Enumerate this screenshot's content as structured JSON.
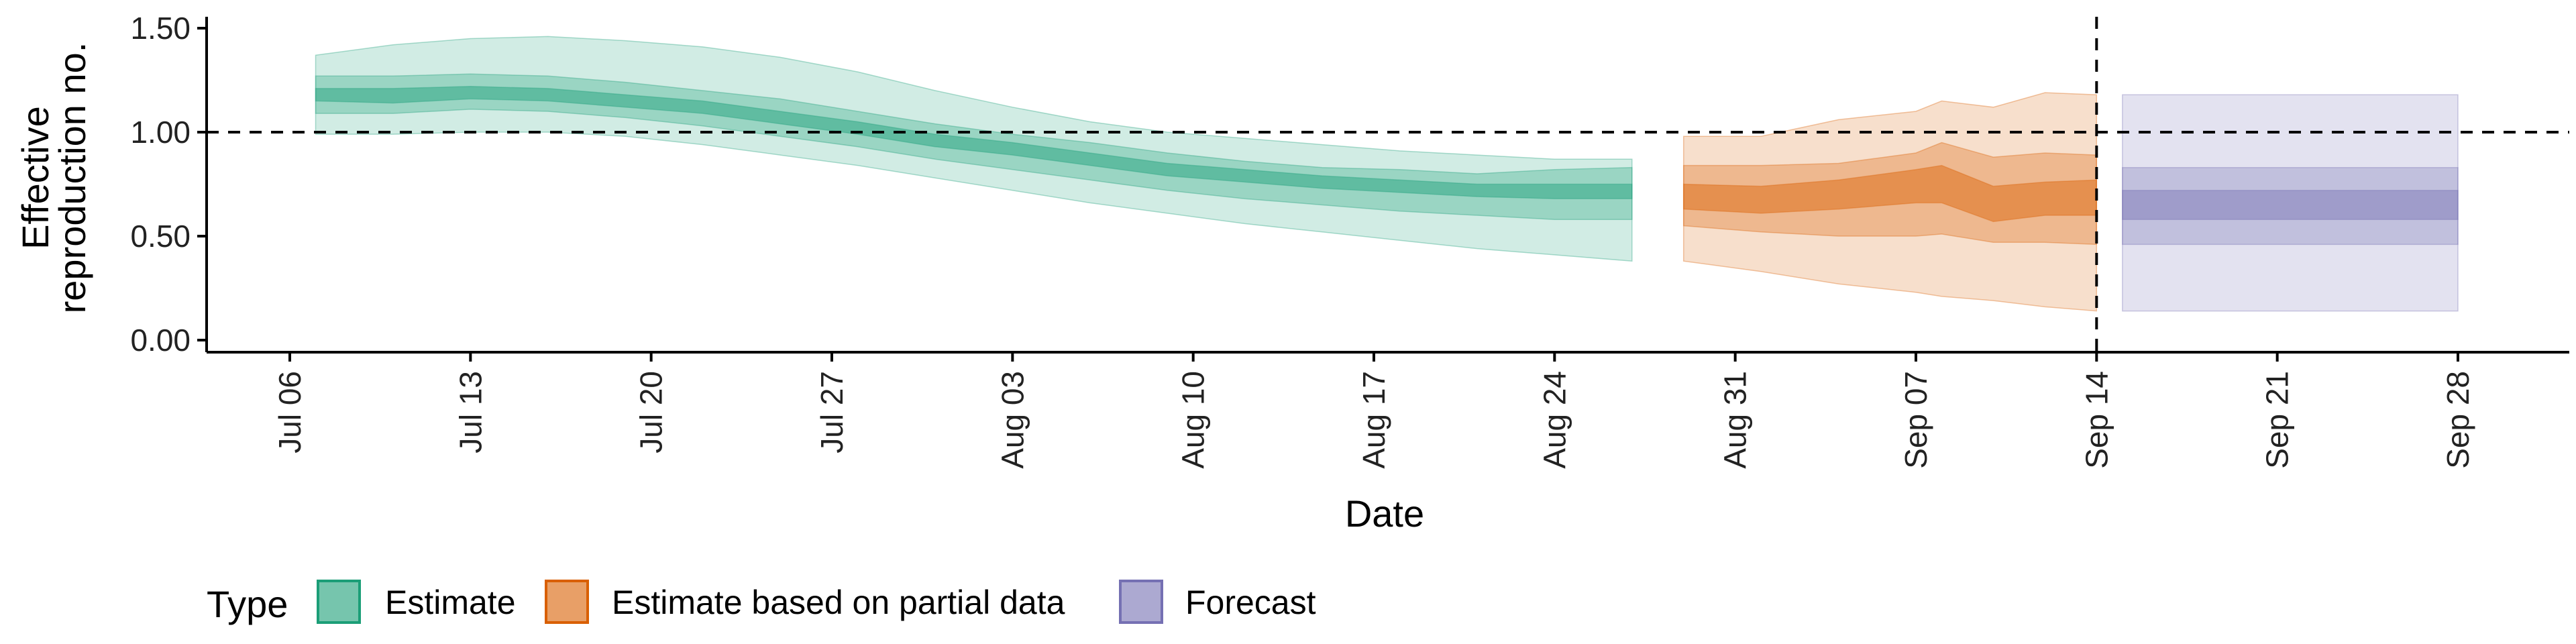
{
  "chart_data": {
    "type": "area",
    "xlabel": "Date",
    "ylabel_lines": [
      "Effective",
      "reproduction no."
    ],
    "ylim": [
      0,
      1.55
    ],
    "xlim": [
      "2020-07-02",
      "2020-10-04"
    ],
    "y_ticks": [
      0,
      0.5,
      1.0,
      1.5
    ],
    "y_tick_labels": [
      "0.00",
      "0.50",
      "1.00",
      "1.50"
    ],
    "x_ticks": [
      "2020-07-06",
      "2020-07-13",
      "2020-07-20",
      "2020-07-27",
      "2020-08-03",
      "2020-08-10",
      "2020-08-17",
      "2020-08-24",
      "2020-08-31",
      "2020-09-07",
      "2020-09-14",
      "2020-09-21",
      "2020-09-28"
    ],
    "x_tick_labels": [
      "Jul 06",
      "Jul 13",
      "Jul 20",
      "Jul 27",
      "Aug 03",
      "Aug 10",
      "Aug 17",
      "Aug 24",
      "Aug 31",
      "Sep 07",
      "Sep 14",
      "Sep 21",
      "Sep 28"
    ],
    "reference_lines": {
      "y": 1.0,
      "x": "2020-09-14",
      "style": "dashed"
    },
    "legend": {
      "title": "Type",
      "placement": "bottom-left",
      "entries": [
        {
          "label": "Estimate",
          "color": "#1b9e77"
        },
        {
          "label": "Estimate based on partial data",
          "color": "#d95f02"
        },
        {
          "label": "Forecast",
          "color": "#7570b3"
        }
      ]
    },
    "series": [
      {
        "name": "Estimate",
        "color": "#1b9e77",
        "x": [
          "2020-07-07",
          "2020-07-10",
          "2020-07-13",
          "2020-07-16",
          "2020-07-19",
          "2020-07-22",
          "2020-07-25",
          "2020-07-28",
          "2020-07-31",
          "2020-08-03",
          "2020-08-06",
          "2020-08-09",
          "2020-08-12",
          "2020-08-15",
          "2020-08-18",
          "2020-08-21",
          "2020-08-24",
          "2020-08-27"
        ],
        "median": [
          1.18,
          1.17,
          1.19,
          1.18,
          1.15,
          1.12,
          1.07,
          1.02,
          0.96,
          0.92,
          0.87,
          0.82,
          0.79,
          0.76,
          0.74,
          0.72,
          0.71,
          0.71
        ],
        "lower_90": [
          0.99,
          0.99,
          1.0,
          1.0,
          0.98,
          0.94,
          0.89,
          0.84,
          0.78,
          0.72,
          0.66,
          0.61,
          0.56,
          0.52,
          0.48,
          0.44,
          0.41,
          0.38
        ],
        "upper_90": [
          1.37,
          1.42,
          1.45,
          1.46,
          1.44,
          1.41,
          1.36,
          1.29,
          1.2,
          1.12,
          1.05,
          1.0,
          0.97,
          0.94,
          0.91,
          0.89,
          0.87,
          0.87
        ],
        "lower_50": [
          1.09,
          1.09,
          1.11,
          1.1,
          1.07,
          1.03,
          0.98,
          0.93,
          0.87,
          0.82,
          0.77,
          0.72,
          0.68,
          0.65,
          0.62,
          0.6,
          0.58,
          0.58
        ],
        "upper_50": [
          1.27,
          1.27,
          1.28,
          1.27,
          1.24,
          1.2,
          1.16,
          1.1,
          1.04,
          0.99,
          0.95,
          0.9,
          0.86,
          0.83,
          0.82,
          0.8,
          0.82,
          0.83
        ],
        "lower_20": [
          1.15,
          1.14,
          1.16,
          1.15,
          1.12,
          1.09,
          1.04,
          0.99,
          0.93,
          0.89,
          0.84,
          0.79,
          0.76,
          0.73,
          0.71,
          0.69,
          0.68,
          0.68
        ],
        "upper_20": [
          1.21,
          1.21,
          1.22,
          1.21,
          1.18,
          1.15,
          1.1,
          1.05,
          0.99,
          0.95,
          0.9,
          0.85,
          0.82,
          0.79,
          0.77,
          0.75,
          0.75,
          0.75
        ]
      },
      {
        "name": "Estimate based on partial data",
        "color": "#d95f02",
        "x": [
          "2020-08-29",
          "2020-09-01",
          "2020-09-04",
          "2020-09-07",
          "2020-09-08",
          "2020-09-10",
          "2020-09-12",
          "2020-09-14"
        ],
        "median": [
          0.69,
          0.68,
          0.7,
          0.74,
          0.75,
          0.65,
          0.67,
          0.68
        ],
        "lower_90": [
          0.38,
          0.33,
          0.27,
          0.23,
          0.21,
          0.19,
          0.16,
          0.14
        ],
        "upper_90": [
          0.98,
          0.98,
          1.06,
          1.1,
          1.15,
          1.12,
          1.19,
          1.18
        ],
        "lower_50": [
          0.55,
          0.52,
          0.5,
          0.5,
          0.51,
          0.47,
          0.47,
          0.46
        ],
        "upper_50": [
          0.84,
          0.84,
          0.85,
          0.9,
          0.95,
          0.88,
          0.9,
          0.89
        ],
        "lower_20": [
          0.63,
          0.61,
          0.63,
          0.66,
          0.66,
          0.57,
          0.6,
          0.6
        ],
        "upper_20": [
          0.75,
          0.74,
          0.77,
          0.82,
          0.84,
          0.74,
          0.76,
          0.77
        ]
      },
      {
        "name": "Forecast",
        "color": "#7570b3",
        "x": [
          "2020-09-15",
          "2020-09-28"
        ],
        "median": [
          0.65,
          0.65
        ],
        "lower_90": [
          0.14,
          0.14
        ],
        "upper_90": [
          1.18,
          1.18
        ],
        "lower_50": [
          0.46,
          0.46
        ],
        "upper_50": [
          0.83,
          0.83
        ],
        "lower_20": [
          0.58,
          0.58
        ],
        "upper_20": [
          0.72,
          0.72
        ]
      }
    ]
  }
}
